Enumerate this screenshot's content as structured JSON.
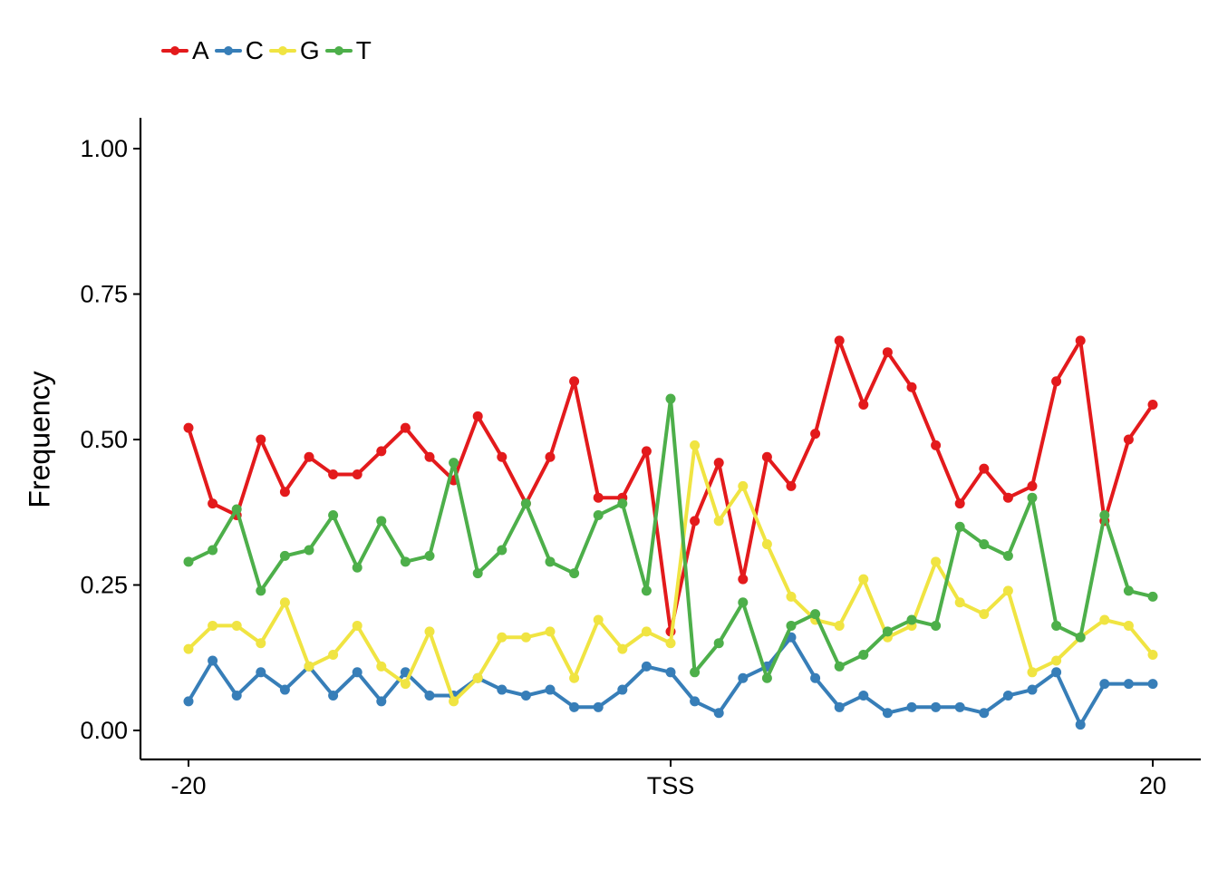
{
  "chart_data": {
    "type": "line",
    "ylabel": "Frequency",
    "xlabel": "",
    "xlim": [
      -20,
      20
    ],
    "ylim": [
      0,
      1
    ],
    "yticks": [
      0.0,
      0.25,
      0.5,
      0.75,
      1.0
    ],
    "ytick_labels": [
      "0.00",
      "0.25",
      "0.50",
      "0.75",
      "1.00"
    ],
    "xticks": [
      -20,
      0,
      20
    ],
    "xtick_labels": [
      "-20",
      "TSS",
      "20"
    ],
    "legend_position": "top-left",
    "grid": false,
    "x": [
      -20,
      -19,
      -18,
      -17,
      -16,
      -15,
      -14,
      -13,
      -12,
      -11,
      -10,
      -9,
      -8,
      -7,
      -6,
      -5,
      -4,
      -3,
      -2,
      -1,
      0,
      1,
      2,
      3,
      4,
      5,
      6,
      7,
      8,
      9,
      10,
      11,
      12,
      13,
      14,
      15,
      16,
      17,
      18,
      19,
      20
    ],
    "series": [
      {
        "name": "A",
        "color": "#e31a1c",
        "values": [
          0.52,
          0.39,
          0.37,
          0.5,
          0.41,
          0.47,
          0.44,
          0.44,
          0.48,
          0.52,
          0.47,
          0.43,
          0.54,
          0.47,
          0.39,
          0.47,
          0.6,
          0.4,
          0.4,
          0.48,
          0.17,
          0.36,
          0.46,
          0.26,
          0.47,
          0.42,
          0.51,
          0.67,
          0.56,
          0.65,
          0.59,
          0.49,
          0.39,
          0.45,
          0.4,
          0.42,
          0.6,
          0.67,
          0.36,
          0.5,
          0.56
        ]
      },
      {
        "name": "C",
        "color": "#377eb8",
        "values": [
          0.05,
          0.12,
          0.06,
          0.1,
          0.07,
          0.11,
          0.06,
          0.1,
          0.05,
          0.1,
          0.06,
          0.06,
          0.09,
          0.07,
          0.06,
          0.07,
          0.04,
          0.04,
          0.07,
          0.11,
          0.1,
          0.05,
          0.03,
          0.09,
          0.11,
          0.16,
          0.09,
          0.04,
          0.06,
          0.03,
          0.04,
          0.04,
          0.04,
          0.03,
          0.06,
          0.07,
          0.1,
          0.01,
          0.08,
          0.08,
          0.08
        ]
      },
      {
        "name": "G",
        "color": "#f0e442",
        "values": [
          0.14,
          0.18,
          0.18,
          0.15,
          0.22,
          0.11,
          0.13,
          0.18,
          0.11,
          0.08,
          0.17,
          0.05,
          0.09,
          0.16,
          0.16,
          0.17,
          0.09,
          0.19,
          0.14,
          0.17,
          0.15,
          0.49,
          0.36,
          0.42,
          0.32,
          0.23,
          0.19,
          0.18,
          0.26,
          0.16,
          0.18,
          0.29,
          0.22,
          0.2,
          0.24,
          0.1,
          0.12,
          0.16,
          0.19,
          0.18,
          0.13
        ]
      },
      {
        "name": "T",
        "color": "#4daf4a",
        "values": [
          0.29,
          0.31,
          0.38,
          0.24,
          0.3,
          0.31,
          0.37,
          0.28,
          0.36,
          0.29,
          0.3,
          0.46,
          0.27,
          0.31,
          0.39,
          0.29,
          0.27,
          0.37,
          0.39,
          0.24,
          0.57,
          0.1,
          0.15,
          0.22,
          0.09,
          0.18,
          0.2,
          0.11,
          0.13,
          0.17,
          0.19,
          0.18,
          0.35,
          0.32,
          0.3,
          0.4,
          0.18,
          0.16,
          0.37,
          0.24,
          0.23
        ]
      }
    ]
  }
}
